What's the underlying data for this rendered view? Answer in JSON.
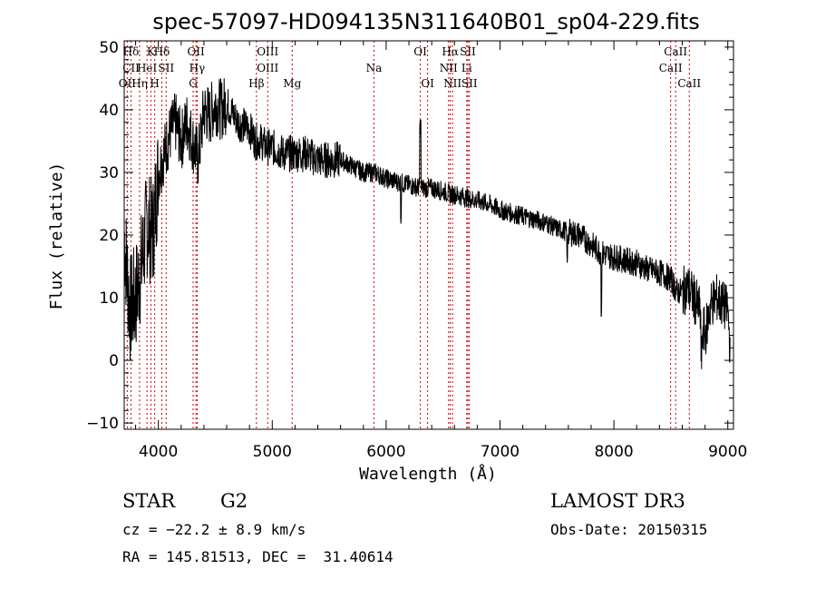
{
  "chart_data": {
    "type": "line",
    "title": "spec-57097-HD094135N311640B01_sp04-229.fits",
    "xlabel": "Wavelength (Å)",
    "ylabel": "Flux (relative)",
    "xlim": [
      3700,
      9050
    ],
    "ylim": [
      -11,
      51
    ],
    "xticks": [
      4000,
      5000,
      6000,
      7000,
      8000,
      9000
    ],
    "yticks": [
      -10,
      0,
      10,
      20,
      30,
      40,
      50
    ],
    "grid": false,
    "series": [
      {
        "name": "spectrum",
        "x": [
          3700,
          3750,
          3800,
          3850,
          3900,
          3950,
          4000,
          4050,
          4100,
          4150,
          4200,
          4250,
          4300,
          4350,
          4400,
          4450,
          4500,
          4550,
          4600,
          4700,
          4800,
          4850,
          4900,
          4950,
          5000,
          5100,
          5200,
          5300,
          5400,
          5500,
          5600,
          5700,
          5800,
          5900,
          6000,
          6100,
          6200,
          6300,
          6350,
          6400,
          6500,
          6560,
          6600,
          6700,
          6800,
          6900,
          7000,
          7100,
          7200,
          7300,
          7400,
          7500,
          7600,
          7700,
          7800,
          7900,
          8000,
          8100,
          8200,
          8300,
          8400,
          8450,
          8500,
          8550,
          8600,
          8650,
          8700,
          8750,
          8800,
          8850,
          8900,
          8950,
          9000,
          9020
        ],
        "y": [
          20,
          8,
          10,
          15,
          22,
          20,
          30,
          33,
          36,
          38,
          35,
          38,
          35,
          32,
          40,
          39,
          41,
          40,
          41,
          38,
          37,
          35,
          35,
          34,
          34,
          33,
          33,
          33,
          32,
          32,
          32,
          31,
          30,
          30,
          29,
          28.5,
          28,
          27.5,
          27.5,
          27.5,
          27,
          26.5,
          26.5,
          26,
          25.5,
          25,
          24,
          23.5,
          23,
          22.5,
          22,
          21,
          20.5,
          20,
          18.5,
          17,
          16.5,
          16,
          15.5,
          14.5,
          14,
          13.5,
          13,
          11,
          11,
          11.5,
          10,
          8,
          4,
          9,
          10,
          9,
          8,
          2
        ]
      }
    ],
    "spectral_lines": [
      {
        "label": "Hδ",
        "wavelength": 3760,
        "row": 1
      },
      {
        "label": "K",
        "wavelength": 3934,
        "row": 1
      },
      {
        "label": "Hδ",
        "wavelength": 4030,
        "row": 1
      },
      {
        "label": "OII",
        "wavelength": 4330,
        "row": 1
      },
      {
        "label": "OIII",
        "wavelength": 4960,
        "row": 1
      },
      {
        "label": "Na",
        "wavelength": 5893,
        "row": 2
      },
      {
        "label": "OI",
        "wavelength": 6300,
        "row": 1
      },
      {
        "label": "OI",
        "wavelength": 6364,
        "row": 3
      },
      {
        "label": "Hα",
        "wavelength": 6563,
        "row": 1
      },
      {
        "label": "SII",
        "wavelength": 6717,
        "row": 1
      },
      {
        "label": "CaII",
        "wavelength": 8542,
        "row": 1
      },
      {
        "label": "CII",
        "wavelength": 3760,
        "row": 2
      },
      {
        "label": "HeI",
        "wavelength": 3900,
        "row": 2
      },
      {
        "label": "SII",
        "wavelength": 4068,
        "row": 2
      },
      {
        "label": "Hγ",
        "wavelength": 4340,
        "row": 2
      },
      {
        "label": "OIII",
        "wavelength": 4960,
        "row": 2
      },
      {
        "label": "NII",
        "wavelength": 6548,
        "row": 2
      },
      {
        "label": "Li",
        "wavelength": 6708,
        "row": 2
      },
      {
        "label": "CaII",
        "wavelength": 8498,
        "row": 2
      },
      {
        "label": "OII",
        "wavelength": 3727,
        "row": 3
      },
      {
        "label": "Hη",
        "wavelength": 3835,
        "row": 3
      },
      {
        "label": "H",
        "wavelength": 3968,
        "row": 3
      },
      {
        "label": "G",
        "wavelength": 4305,
        "row": 3
      },
      {
        "label": "Hβ",
        "wavelength": 4861,
        "row": 3
      },
      {
        "label": "Mg",
        "wavelength": 5175,
        "row": 3
      },
      {
        "label": "NII",
        "wavelength": 6583,
        "row": 3
      },
      {
        "label": "SII",
        "wavelength": 6731,
        "row": 3
      },
      {
        "label": "CaII",
        "wavelength": 8662,
        "row": 3
      }
    ]
  },
  "info": {
    "object_class": "STAR",
    "subclass": "G2",
    "survey": "LAMOST DR3",
    "cz": "cz = −22.2 ± 8.9 km/s",
    "obs_date": "Obs-Date: 20150315",
    "coords": "RA = 145.81513, DEC =  31.40614"
  },
  "colors": {
    "line": "#000000",
    "marker": "#cc0000",
    "background": "#ffffff"
  }
}
